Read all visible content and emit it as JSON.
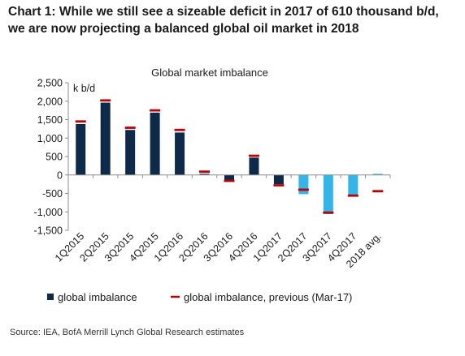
{
  "header": {
    "title_line1": "Chart 1: While we still see a sizeable deficit in 2017 of 610 thousand b/d,",
    "title_line2": "we are now projecting a balanced global oil market in 2018"
  },
  "chart_data": {
    "type": "bar",
    "title": "Global market imbalance",
    "unit_label": "k b/d",
    "xlabel": "",
    "ylabel": "",
    "ylim": [
      -1500,
      2500
    ],
    "yticks": [
      2500,
      2000,
      1500,
      1000,
      500,
      0,
      -500,
      -1000,
      -1500
    ],
    "ytick_labels": [
      "2,500",
      "2,000",
      "1,500",
      "1,000",
      "500",
      "0",
      "-500",
      "-1,000",
      "-1,500"
    ],
    "categories": [
      "1Q2015",
      "2Q2015",
      "3Q2015",
      "4Q2015",
      "1Q2016",
      "2Q2016",
      "3Q2016",
      "4Q2016",
      "1Q2017",
      "2Q2017",
      "3Q2017",
      "4Q2017",
      "2018 avg."
    ],
    "grid": false,
    "legend_position": "bottom",
    "series": [
      {
        "name": "global imbalance",
        "kind": "bar",
        "values": [
          1380,
          1960,
          1220,
          1690,
          1150,
          30,
          -140,
          470,
          -250,
          -520,
          -1060,
          -570,
          30
        ],
        "colors": [
          "#0d2a4a",
          "#0d2a4a",
          "#0d2a4a",
          "#0d2a4a",
          "#0d2a4a",
          "#0d2a4a",
          "#0d2a4a",
          "#0d2a4a",
          "#0d2a4a",
          "#33b5ea",
          "#33b5ea",
          "#33b5ea",
          "#33b5ea"
        ]
      },
      {
        "name": "global imbalance, previous (Mar-17)",
        "kind": "marker",
        "color": "#c00000",
        "values": [
          1450,
          2020,
          1280,
          1750,
          1220,
          90,
          -160,
          520,
          -280,
          -400,
          -1020,
          -560,
          -440
        ]
      }
    ]
  },
  "source": "Source: IEA, BofA Merrill Lynch Global Research estimates"
}
